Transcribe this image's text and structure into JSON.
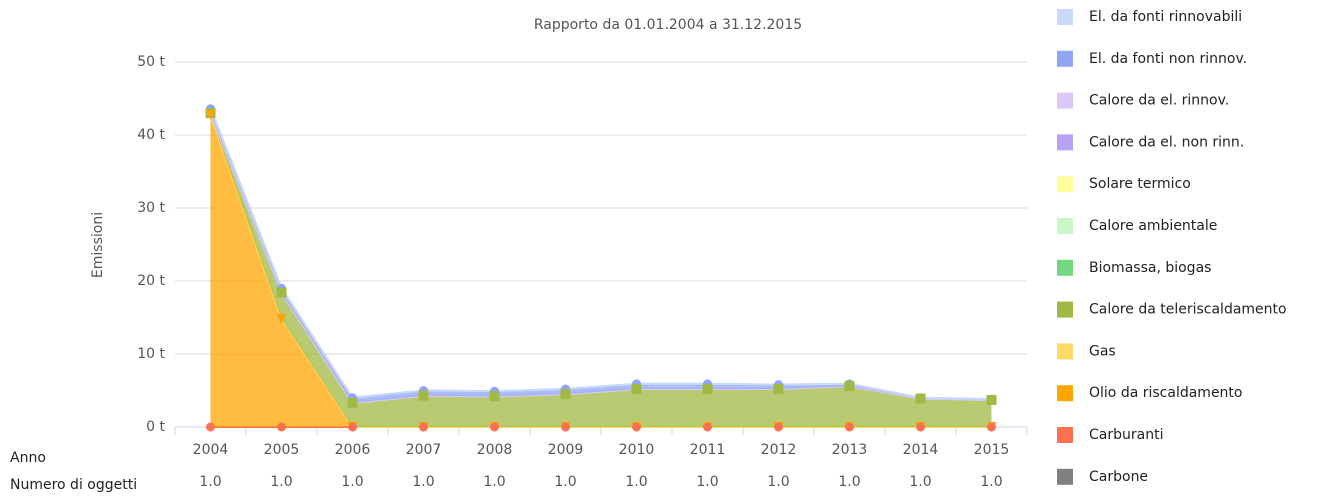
{
  "chart_data": {
    "type": "stacked-area",
    "title": "Rapporto da 01.01.2004 a 31.12.2015",
    "ylabel": "Emissioni",
    "categories": [
      "2004",
      "2005",
      "2006",
      "2007",
      "2008",
      "2009",
      "2010",
      "2011",
      "2012",
      "2013",
      "2014",
      "2015"
    ],
    "ylim": [
      0,
      50
    ],
    "yticks": [
      {
        "value": 0,
        "label": "0 t"
      },
      {
        "value": 10,
        "label": "10 t"
      },
      {
        "value": 20,
        "label": "20 t"
      },
      {
        "value": 30,
        "label": "30 t"
      },
      {
        "value": 40,
        "label": "40 t"
      },
      {
        "value": 50,
        "label": "50 t"
      }
    ],
    "grid": true,
    "legend": "right",
    "row_labels": [
      "Anno",
      "Numero di oggetti"
    ],
    "object_counts": [
      "1.0",
      "1.0",
      "1.0",
      "1.0",
      "1.0",
      "1.0",
      "1.0",
      "1.0",
      "1.0",
      "1.0",
      "1.0",
      "1.0"
    ],
    "series": [
      {
        "name": "El. da fonti rinnovabili",
        "color": "#c9d9f8",
        "values": [
          0,
          0,
          0,
          0,
          0,
          0,
          0,
          0,
          0,
          0,
          0,
          0
        ]
      },
      {
        "name": "El. da fonti non rinnov.",
        "color": "#90a6f5",
        "marker": "circle",
        "values": [
          0.6,
          0.6,
          0.7,
          0.7,
          0.7,
          0.7,
          0.7,
          0.7,
          0.6,
          0.3,
          0.1,
          0.1
        ]
      },
      {
        "name": "Calore da el. rinnov.",
        "color": "#dcc9f8",
        "values": [
          0,
          0,
          0,
          0,
          0,
          0,
          0,
          0,
          0,
          0,
          0,
          0
        ]
      },
      {
        "name": "Calore da el. non rinn.",
        "color": "#b9a2f2",
        "values": [
          0,
          0,
          0,
          0,
          0,
          0,
          0,
          0,
          0,
          0,
          0,
          0
        ]
      },
      {
        "name": "Solare termico",
        "color": "#ffff99",
        "values": [
          0,
          0,
          0,
          0,
          0,
          0,
          0,
          0,
          0,
          0,
          0,
          0
        ]
      },
      {
        "name": "Calore ambientale",
        "color": "#c8f8c8",
        "values": [
          0,
          0,
          0,
          0,
          0,
          0,
          0,
          0,
          0,
          0,
          0,
          0
        ]
      },
      {
        "name": "Biomassa, biogas",
        "color": "#72d881",
        "values": [
          0,
          0,
          0,
          0,
          0,
          0,
          0,
          0,
          0,
          0,
          0,
          0
        ]
      },
      {
        "name": "Calore da teleriscaldamento",
        "color": "#a1b943",
        "marker": "square",
        "values": [
          0.3,
          3.6,
          3.3,
          4.3,
          4.2,
          4.5,
          5.2,
          5.2,
          5.2,
          5.6,
          3.9,
          3.7
        ]
      },
      {
        "name": "Gas",
        "color": "#ffd966",
        "values": [
          0,
          0,
          0,
          0,
          0,
          0,
          0,
          0,
          0,
          0,
          0,
          0
        ]
      },
      {
        "name": "Olio da riscaldamento",
        "color": "#ffa500",
        "marker": "triangle",
        "values": [
          42.7,
          14.8,
          0,
          0,
          0,
          0,
          0,
          0,
          0,
          0,
          0,
          0
        ]
      },
      {
        "name": "Carburanti",
        "color": "#ff7050",
        "marker": "circle",
        "values": [
          0,
          0,
          0,
          0,
          0,
          0,
          0,
          0,
          0,
          0,
          0,
          0
        ]
      },
      {
        "name": "Carbone",
        "color": "#808080",
        "values": [
          0,
          0,
          0,
          0,
          0,
          0,
          0,
          0,
          0,
          0,
          0,
          0
        ]
      }
    ]
  }
}
